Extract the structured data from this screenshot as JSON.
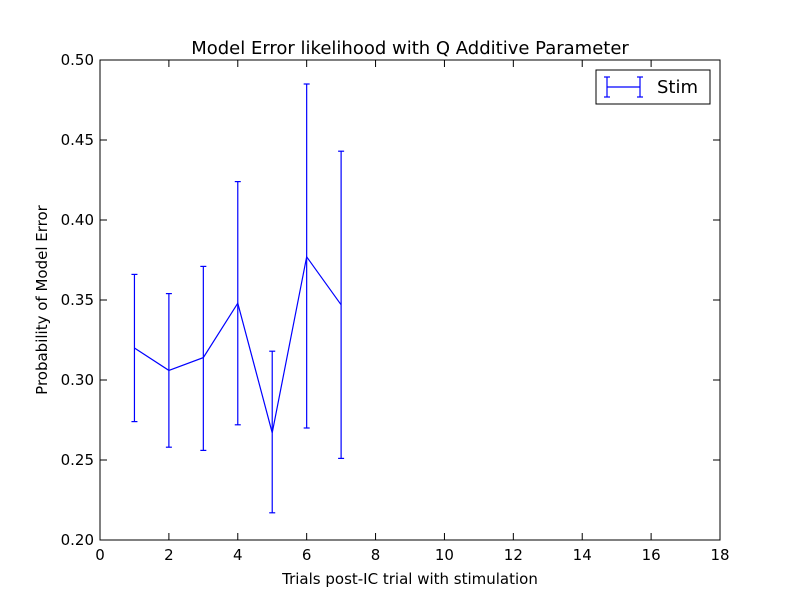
{
  "chart_data": {
    "type": "line",
    "title": "Model Error likelihood with Q Additive Parameter",
    "xlabel": "Trials post-IC trial with stimulation",
    "ylabel": "Probability of Model Error",
    "xlim": [
      0,
      18
    ],
    "ylim": [
      0.2,
      0.5
    ],
    "xticks": [
      0,
      2,
      4,
      6,
      8,
      10,
      12,
      14,
      16,
      18
    ],
    "xtick_labels": [
      "0",
      "2",
      "4",
      "6",
      "8",
      "10",
      "12",
      "14",
      "16",
      "18"
    ],
    "yticks": [
      0.2,
      0.25,
      0.3,
      0.35,
      0.4,
      0.45,
      0.5
    ],
    "ytick_labels": [
      "0.20",
      "0.25",
      "0.30",
      "0.35",
      "0.40",
      "0.45",
      "0.50"
    ],
    "grid": false,
    "legend_position": "top-right",
    "series": [
      {
        "name": "Stim",
        "color": "#0000ff",
        "x": [
          1,
          2,
          3,
          4,
          5,
          6,
          7
        ],
        "y": [
          0.32,
          0.306,
          0.314,
          0.348,
          0.267,
          0.377,
          0.347
        ],
        "y_lower": [
          0.274,
          0.258,
          0.256,
          0.272,
          0.217,
          0.27,
          0.251
        ],
        "y_upper": [
          0.366,
          0.354,
          0.371,
          0.424,
          0.318,
          0.485,
          0.443
        ]
      }
    ]
  }
}
